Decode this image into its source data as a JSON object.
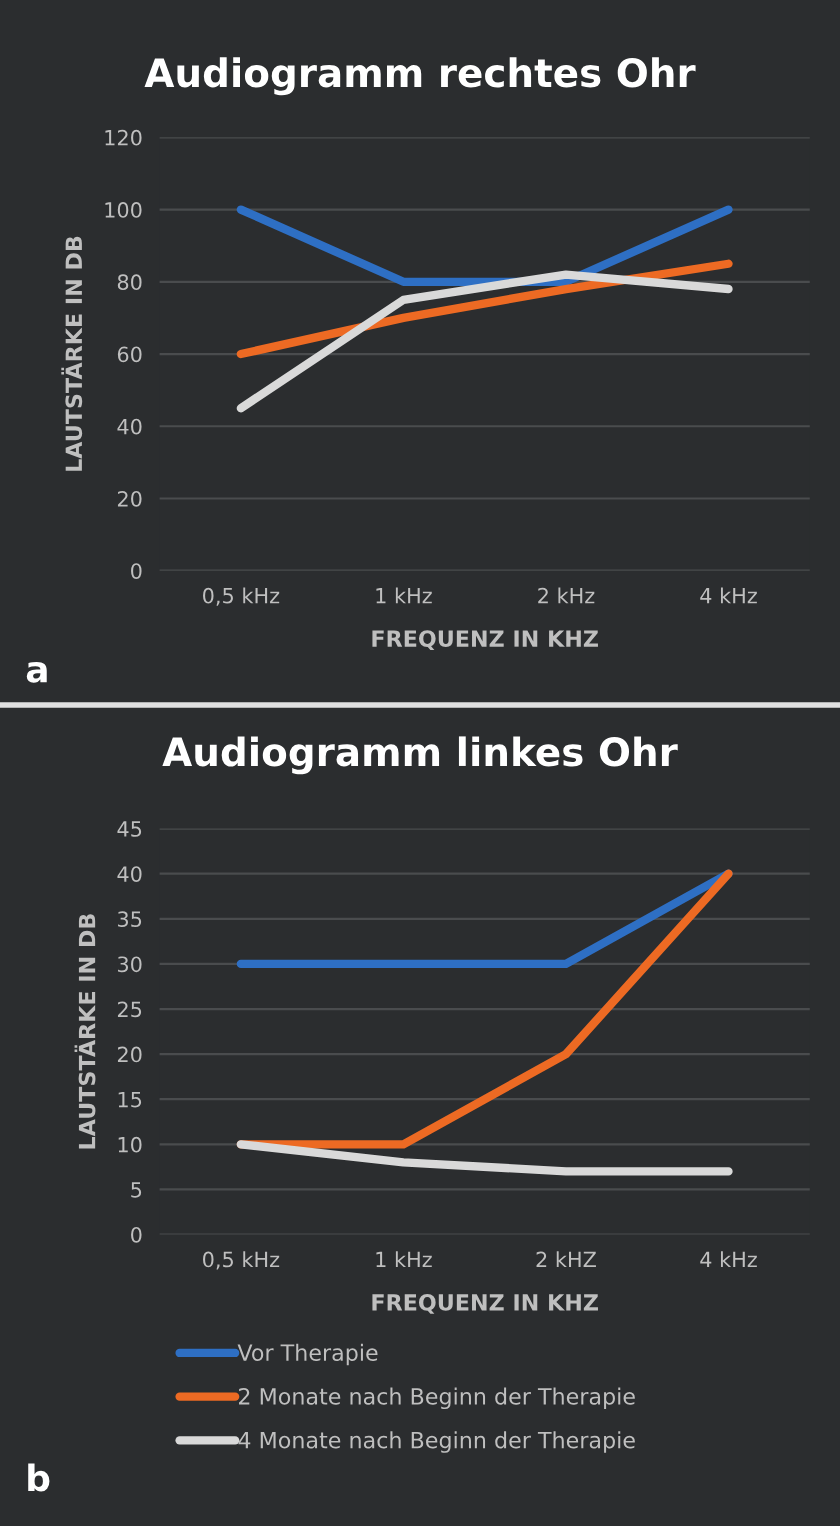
{
  "chart_data": [
    {
      "type": "line",
      "title": "Audiogramm rechtes Ohr",
      "xlabel": "FREQUENZ IN KHZ",
      "ylabel": "LAUTSTÄRKE IN DB",
      "categories": [
        "0,5 kHz",
        "1 kHz",
        "2 kHz",
        "4 kHz"
      ],
      "series": [
        {
          "color": "#2e6fc4",
          "values": [
            100,
            80,
            80,
            100
          ]
        },
        {
          "color": "#ed6a23",
          "values": [
            60,
            70,
            78,
            85
          ]
        },
        {
          "color": "#d9d9d9",
          "values": [
            45,
            75,
            82,
            78
          ]
        }
      ],
      "ylim": [
        0,
        120
      ],
      "yticks": [
        0,
        20,
        40,
        60,
        80,
        100,
        120
      ],
      "grid": "y",
      "marker": "none",
      "line_style": "solid",
      "annotations": [
        "a"
      ]
    },
    {
      "type": "line",
      "title": "Audiogramm linkes Ohr",
      "xlabel": "FREQUENZ IN KHZ",
      "ylabel": "LAUTSTÄRKE IN DB",
      "categories": [
        "0,5 kHz",
        "1 kHz",
        "2 kHZ",
        "4 kHz"
      ],
      "series": [
        {
          "name": "Vor Therapie",
          "color": "#2e6fc4",
          "values": [
            30,
            30,
            30,
            40
          ]
        },
        {
          "name": "2 Monate nach Beginn der Therapie",
          "color": "#ed6a23",
          "values": [
            10,
            10,
            20,
            40
          ]
        },
        {
          "name": "4 Monate nach Beginn der Therapie",
          "color": "#d9d9d9",
          "values": [
            10,
            8,
            7,
            7
          ]
        }
      ],
      "ylim": [
        0,
        45
      ],
      "yticks": [
        0,
        5,
        10,
        15,
        20,
        25,
        30,
        35,
        40,
        45
      ],
      "grid": "y",
      "marker": "none",
      "line_style": "solid",
      "legend": "bottom",
      "annotations": [
        "b"
      ]
    }
  ]
}
